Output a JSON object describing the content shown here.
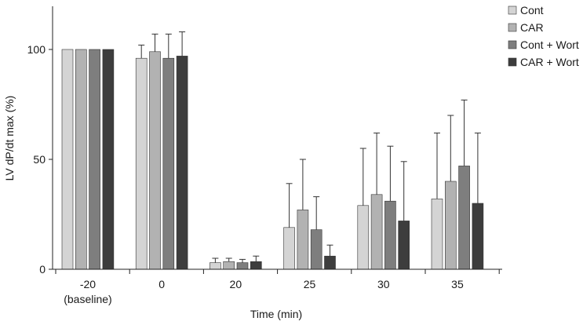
{
  "chart_data": {
    "type": "bar",
    "title": "",
    "xlabel": "Time (min)",
    "ylabel": "LV dP/dt max (%)",
    "ylim": [
      0,
      120
    ],
    "yticks": [
      0,
      50,
      100
    ],
    "categories": [
      {
        "label": "-20",
        "sublabel": "(baseline)"
      },
      {
        "label": "0",
        "sublabel": ""
      },
      {
        "label": "20",
        "sublabel": ""
      },
      {
        "label": "25",
        "sublabel": ""
      },
      {
        "label": "30",
        "sublabel": ""
      },
      {
        "label": "35",
        "sublabel": ""
      }
    ],
    "grid": false,
    "legend_position": "top-right",
    "series": [
      {
        "name": "Cont",
        "color": "#d4d4d4",
        "values": [
          100,
          96,
          3,
          19,
          29,
          32
        ],
        "errors": [
          0,
          6,
          2,
          20,
          26,
          30
        ]
      },
      {
        "name": "CAR",
        "color": "#b2b2b2",
        "values": [
          100,
          99,
          3.5,
          27,
          34,
          40
        ],
        "errors": [
          0,
          8,
          1.5,
          23,
          28,
          30
        ]
      },
      {
        "name": "Cont + Wort",
        "color": "#7e7e7e",
        "values": [
          100,
          96,
          3,
          18,
          31,
          47
        ],
        "errors": [
          0,
          11,
          1.5,
          15,
          25,
          30
        ]
      },
      {
        "name": "CAR + Wort",
        "color": "#3d3d3d",
        "values": [
          100,
          97,
          3.5,
          6,
          22,
          30
        ],
        "errors": [
          0,
          11,
          2.5,
          5,
          27,
          32
        ]
      }
    ]
  }
}
